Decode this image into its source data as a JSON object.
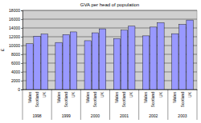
{
  "chart_data": {
    "type": "bar",
    "title": "GVA per head of population",
    "y_label": "£",
    "groups": [
      {
        "label": "1998",
        "categories": [
          "Wales",
          "Scotland",
          "UK"
        ],
        "values": [
          10400,
          12100,
          12600
        ]
      },
      {
        "label": "1999",
        "categories": [
          "Wales",
          "Scotland",
          "UK"
        ],
        "values": [
          10700,
          12500,
          13100
        ]
      },
      {
        "label": "2000",
        "categories": [
          "Wales",
          "Scotland",
          "UK"
        ],
        "values": [
          11100,
          12900,
          13800
        ]
      },
      {
        "label": "2001",
        "categories": [
          "Wales",
          "Scotland",
          "UK"
        ],
        "values": [
          11600,
          13500,
          14400
        ]
      },
      {
        "label": "2002",
        "categories": [
          "Wales",
          "Scotland",
          "UK"
        ],
        "values": [
          12200,
          14200,
          15200
        ]
      },
      {
        "label": "2003",
        "categories": [
          "Wales",
          "Scotland",
          "UK"
        ],
        "values": [
          12700,
          14800,
          15800
        ]
      }
    ],
    "color": "#9999ff",
    "ylim": [
      0,
      18000
    ],
    "yticks": [
      0,
      2000,
      4000,
      6000,
      8000,
      10000,
      12000,
      14000,
      16000,
      18000
    ],
    "grid": true
  }
}
